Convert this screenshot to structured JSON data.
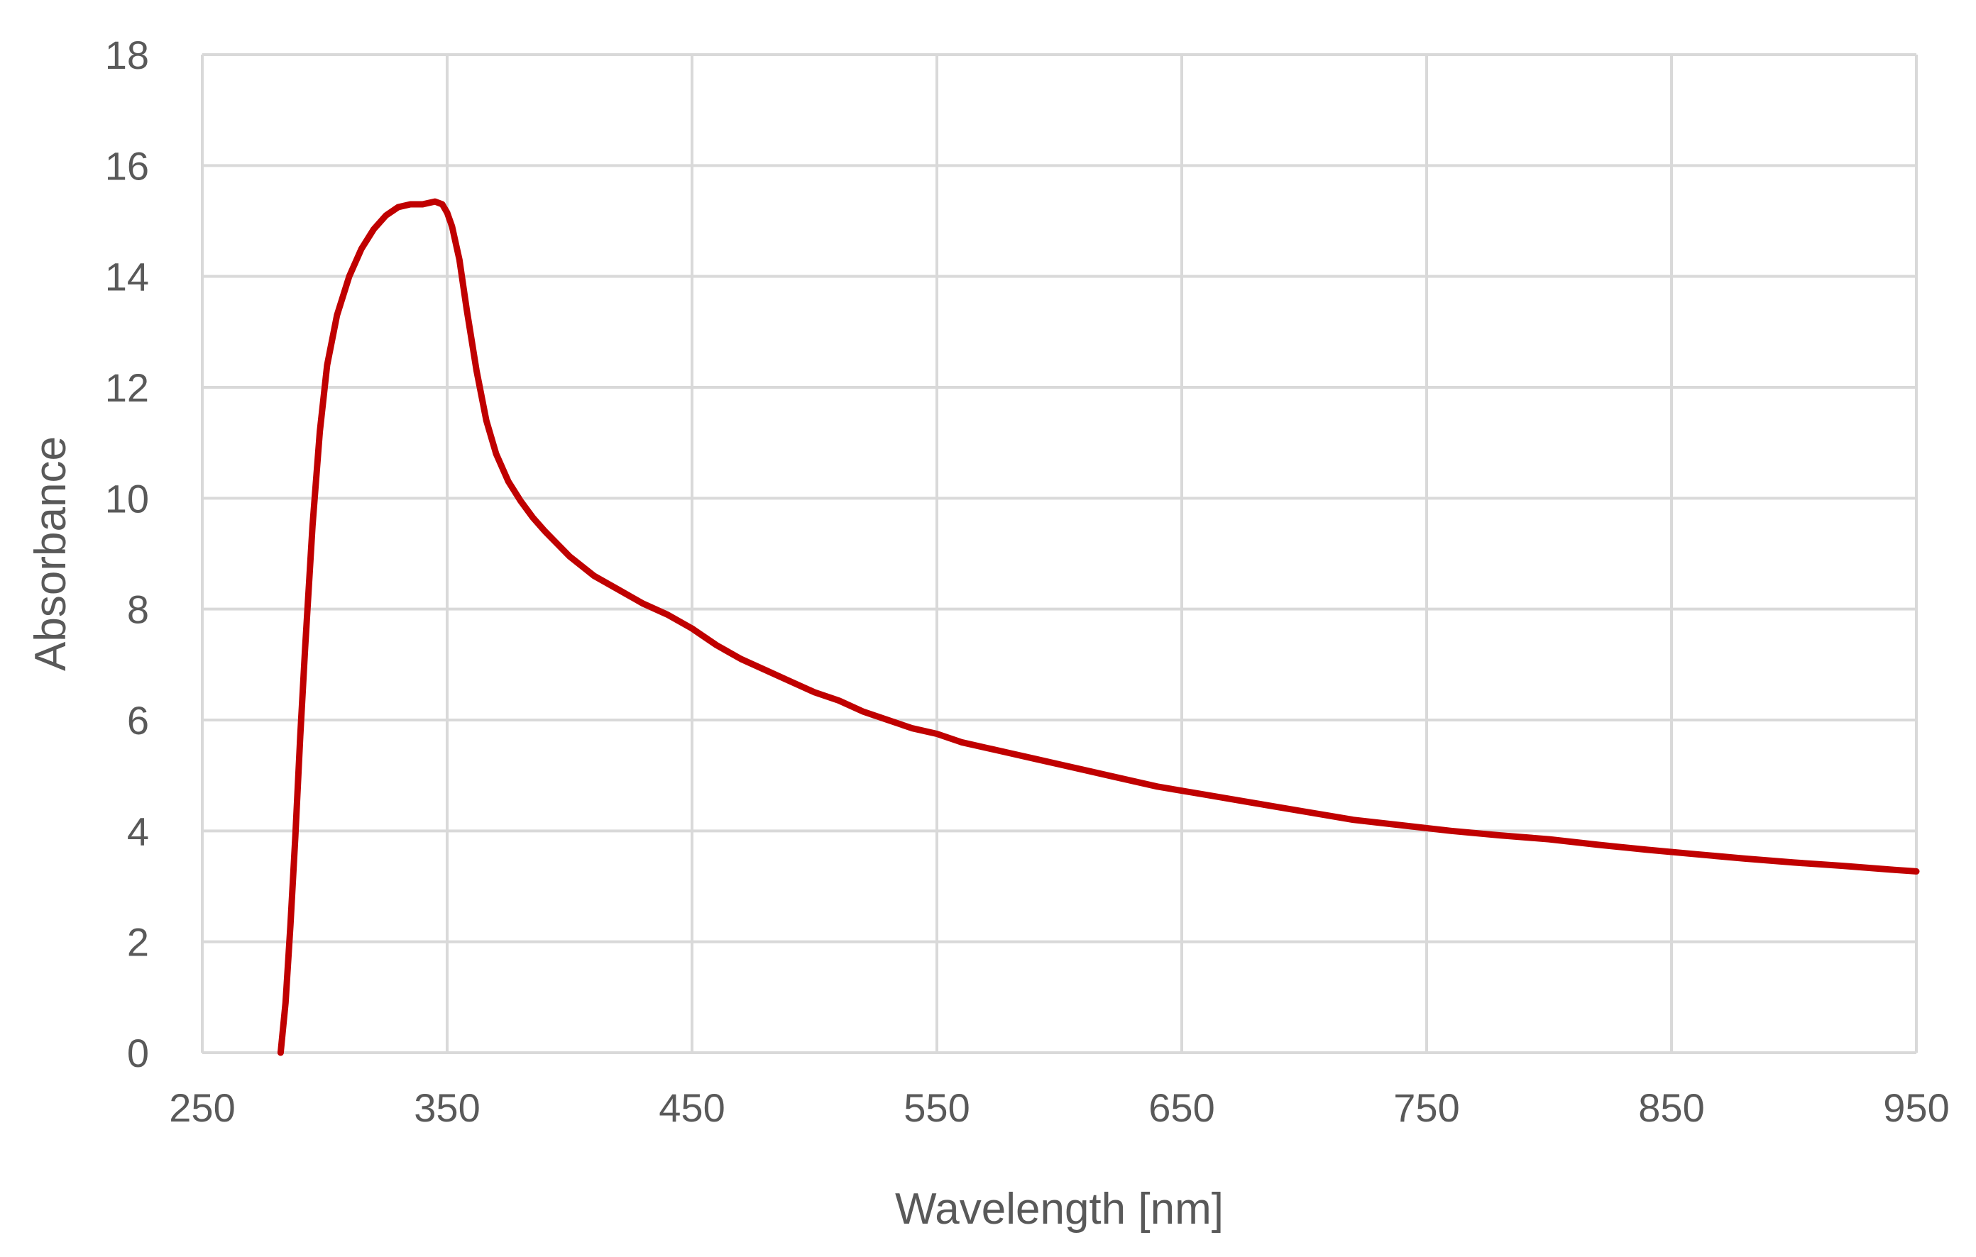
{
  "chart_data": {
    "type": "line",
    "title": "",
    "xlabel": "Wavelength [nm]",
    "ylabel": "Absorbance",
    "xlim": [
      250,
      950
    ],
    "ylim": [
      0,
      18
    ],
    "xticks": [
      250,
      350,
      450,
      550,
      650,
      750,
      850,
      950
    ],
    "yticks": [
      0,
      2,
      4,
      6,
      8,
      10,
      12,
      14,
      16,
      18
    ],
    "grid": true,
    "legend": "none",
    "line_color": "#C00000",
    "series": [
      {
        "x": [
          282,
          284,
          286,
          288,
          290,
          292,
          295,
          298,
          301,
          305,
          310,
          315,
          320,
          325,
          330,
          335,
          340,
          345,
          348,
          350,
          352,
          355,
          358,
          362,
          366,
          370,
          375,
          380,
          385,
          390,
          400,
          410,
          420,
          430,
          440,
          450,
          460,
          470,
          480,
          490,
          500,
          510,
          520,
          530,
          540,
          550,
          560,
          570,
          580,
          590,
          600,
          620,
          640,
          660,
          680,
          700,
          720,
          740,
          760,
          780,
          800,
          820,
          840,
          860,
          880,
          900,
          920,
          940,
          950
        ],
        "y": [
          0.0,
          0.9,
          2.3,
          3.9,
          5.7,
          7.3,
          9.5,
          11.2,
          12.4,
          13.3,
          14.0,
          14.5,
          14.85,
          15.1,
          15.25,
          15.3,
          15.3,
          15.35,
          15.3,
          15.15,
          14.9,
          14.3,
          13.4,
          12.3,
          11.4,
          10.8,
          10.3,
          9.95,
          9.65,
          9.4,
          8.95,
          8.6,
          8.35,
          8.1,
          7.9,
          7.65,
          7.35,
          7.1,
          6.9,
          6.7,
          6.5,
          6.35,
          6.15,
          6.0,
          5.85,
          5.75,
          5.6,
          5.5,
          5.4,
          5.3,
          5.2,
          5.0,
          4.8,
          4.65,
          4.5,
          4.35,
          4.2,
          4.1,
          4.0,
          3.92,
          3.85,
          3.75,
          3.66,
          3.58,
          3.5,
          3.43,
          3.37,
          3.3,
          3.27
        ]
      }
    ]
  }
}
